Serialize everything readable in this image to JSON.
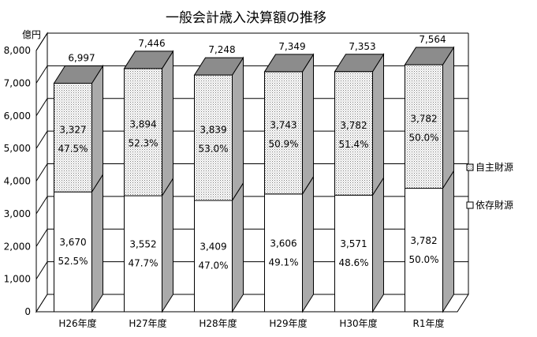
{
  "chart_data": {
    "type": "bar",
    "stacked": true,
    "three_d": true,
    "title": "一般会計歳入決算額の推移",
    "unit_label": "億円",
    "categories": [
      "H26年度",
      "H27年度",
      "H28年度",
      "H29年度",
      "H30年度",
      "R1年度"
    ],
    "totals": [
      "6,997",
      "7,446",
      "7,248",
      "7,349",
      "7,353",
      "7,564"
    ],
    "total_values": [
      6997,
      7446,
      7248,
      7349,
      7353,
      7564
    ],
    "series": [
      {
        "name": "依存財源",
        "values": [
          3670,
          3552,
          3409,
          3606,
          3571,
          3782
        ],
        "value_labels": [
          "3,670",
          "3,552",
          "3,409",
          "3,606",
          "3,571",
          "3,782"
        ],
        "percent_labels": [
          "52.5%",
          "47.7%",
          "47.0%",
          "49.1%",
          "48.6%",
          "50.0%"
        ],
        "fill": "white"
      },
      {
        "name": "自主財源",
        "values": [
          3327,
          3894,
          3839,
          3743,
          3782,
          3782
        ],
        "value_labels": [
          "3,327",
          "3,894",
          "3,839",
          "3,743",
          "3,782",
          "3,782"
        ],
        "percent_labels": [
          "47.5%",
          "52.3%",
          "53.0%",
          "50.9%",
          "51.4%",
          "50.0%"
        ],
        "fill": "dotted"
      }
    ],
    "y_ticks": [
      "0",
      "1,000",
      "2,000",
      "3,000",
      "4,000",
      "5,000",
      "6,000",
      "7,000",
      "8,000"
    ],
    "ylim": [
      0,
      8000
    ],
    "grid": true,
    "legend": [
      "自主財源",
      "依存財源"
    ],
    "legend_placement": "right"
  }
}
